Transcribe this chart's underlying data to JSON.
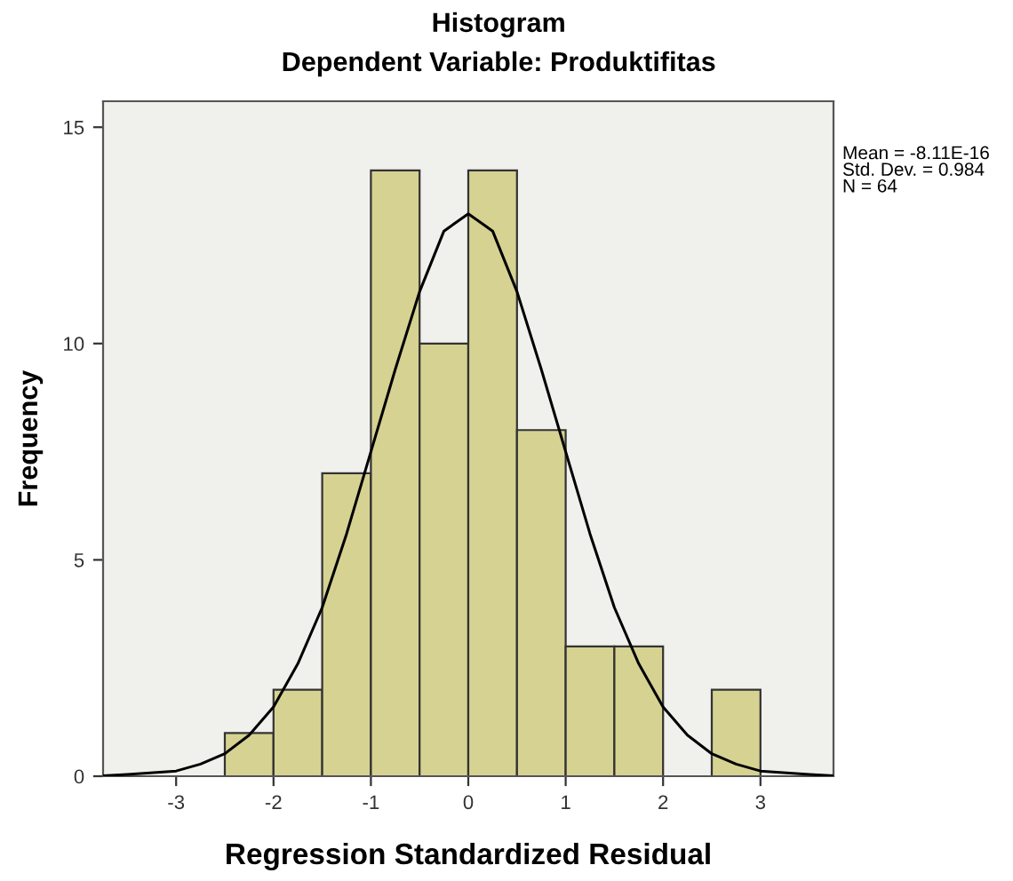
{
  "chart_data": {
    "type": "histogram",
    "title": "Histogram",
    "subtitle": "Dependent Variable: Produktifitas",
    "xlabel": "Regression Standardized Residual",
    "ylabel": "Frequency",
    "bins": [
      -2.5,
      -2.0,
      -1.5,
      -1.0,
      -0.5,
      0.0,
      0.5,
      1.0,
      1.5,
      2.0,
      2.5,
      3.0
    ],
    "values": [
      1,
      2,
      7,
      14,
      10,
      14,
      8,
      3,
      3,
      0,
      2
    ],
    "color": "#d6d292",
    "series": [
      {
        "type": "line",
        "color": "#000000",
        "x": [
          -3.75,
          -3.5,
          -3.0,
          -2.75,
          -2.5,
          -2.25,
          -2.0,
          -1.75,
          -1.5,
          -1.25,
          -1.0,
          -0.75,
          -0.5,
          -0.25,
          0.0,
          0.25,
          0.5,
          0.75,
          1.0,
          1.25,
          1.5,
          1.75,
          2.0,
          2.25,
          2.5,
          2.75,
          3.0,
          3.5,
          3.75
        ],
        "values": [
          0.01,
          0.04,
          0.12,
          0.28,
          0.52,
          0.95,
          1.6,
          2.6,
          3.9,
          5.6,
          7.5,
          9.4,
          11.2,
          12.6,
          13.0,
          12.6,
          11.2,
          9.4,
          7.5,
          5.6,
          3.9,
          2.6,
          1.6,
          0.95,
          0.52,
          0.28,
          0.12,
          0.04,
          0.01
        ]
      }
    ],
    "xlim": [
      -3.75,
      3.75
    ],
    "ylim": [
      0,
      15.6
    ],
    "xticks": [
      -3,
      -2,
      -1,
      0,
      1,
      2,
      3
    ],
    "yticks": [
      0,
      5,
      10,
      15
    ],
    "annotations": [
      "Mean = -8.11E-16\nStd. Dev. = 0.984\nN = 64"
    ]
  }
}
